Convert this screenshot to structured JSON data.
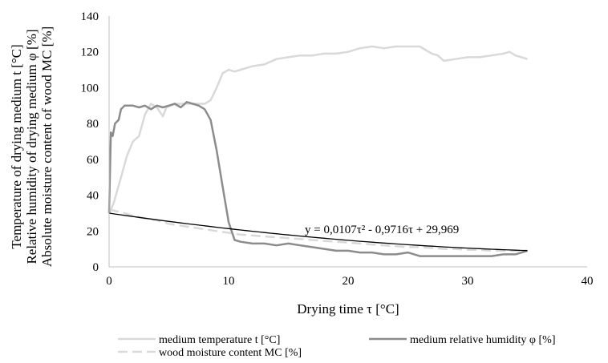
{
  "chart_data": {
    "type": "line",
    "ylabel_lines": [
      "Temperature of drying medium  t [°C]",
      "Relative humidity of drying medium φ [%]",
      "Absolute moisture content of wood MC [%]"
    ],
    "xlabel": "Drying time τ [°C]",
    "xlim": [
      0,
      40
    ],
    "ylim": [
      0,
      140
    ],
    "x_ticks": [
      0,
      10,
      20,
      30,
      40
    ],
    "y_ticks": [
      0,
      20,
      40,
      60,
      80,
      100,
      120,
      140
    ],
    "grid": false,
    "legend_position": "bottom",
    "series": [
      {
        "name": "medium temperature t [°C]",
        "color": "#d9d9d9",
        "style": "solid",
        "points": [
          [
            0.05,
            30
          ],
          [
            0.4,
            36
          ],
          [
            1.0,
            50
          ],
          [
            1.5,
            62
          ],
          [
            2.0,
            70
          ],
          [
            2.5,
            73
          ],
          [
            3.0,
            85
          ],
          [
            3.5,
            91
          ],
          [
            4.0,
            89
          ],
          [
            4.3,
            86
          ],
          [
            4.5,
            84
          ],
          [
            4.8,
            89
          ],
          [
            5.5,
            91
          ],
          [
            6.5,
            91
          ],
          [
            7.5,
            91
          ],
          [
            8.0,
            91
          ],
          [
            8.5,
            93
          ],
          [
            9.0,
            100
          ],
          [
            9.5,
            108
          ],
          [
            10.0,
            110
          ],
          [
            10.5,
            109
          ],
          [
            11.0,
            110
          ],
          [
            12.0,
            112
          ],
          [
            13.0,
            113
          ],
          [
            14.0,
            116
          ],
          [
            15.0,
            117
          ],
          [
            16.0,
            118
          ],
          [
            17.0,
            118
          ],
          [
            18.0,
            119
          ],
          [
            19.0,
            119
          ],
          [
            20.0,
            120
          ],
          [
            21.0,
            122
          ],
          [
            22.0,
            123
          ],
          [
            23.0,
            122
          ],
          [
            24.0,
            123
          ],
          [
            25.0,
            123
          ],
          [
            26.0,
            123
          ],
          [
            26.5,
            121
          ],
          [
            27.0,
            119
          ],
          [
            27.5,
            118
          ],
          [
            28.0,
            115
          ],
          [
            29.0,
            116
          ],
          [
            30.0,
            117
          ],
          [
            31.0,
            117
          ],
          [
            32.0,
            118
          ],
          [
            33.0,
            119
          ],
          [
            33.5,
            120
          ],
          [
            34.0,
            118
          ],
          [
            34.5,
            117
          ],
          [
            35.0,
            116
          ]
        ]
      },
      {
        "name": "medium relative humidity φ [%]",
        "color": "#8c8c8c",
        "style": "solid",
        "points": [
          [
            0.0,
            30
          ],
          [
            0.15,
            75
          ],
          [
            0.3,
            73
          ],
          [
            0.5,
            80
          ],
          [
            0.8,
            82
          ],
          [
            1.0,
            88
          ],
          [
            1.3,
            90
          ],
          [
            2.0,
            90
          ],
          [
            2.5,
            89
          ],
          [
            3.0,
            90
          ],
          [
            3.5,
            88
          ],
          [
            4.0,
            90
          ],
          [
            4.5,
            89
          ],
          [
            5.0,
            90
          ],
          [
            5.5,
            91
          ],
          [
            6.0,
            89
          ],
          [
            6.5,
            92
          ],
          [
            7.0,
            91
          ],
          [
            7.5,
            90
          ],
          [
            8.0,
            88
          ],
          [
            8.5,
            82
          ],
          [
            9.0,
            65
          ],
          [
            9.5,
            45
          ],
          [
            10.0,
            25
          ],
          [
            10.5,
            15
          ],
          [
            11.0,
            14
          ],
          [
            12.0,
            13
          ],
          [
            13.0,
            13
          ],
          [
            14.0,
            12
          ],
          [
            15.0,
            13
          ],
          [
            16.0,
            12
          ],
          [
            17.0,
            11
          ],
          [
            18.0,
            10
          ],
          [
            19.0,
            9
          ],
          [
            20.0,
            9
          ],
          [
            21.0,
            8
          ],
          [
            22.0,
            8
          ],
          [
            23.0,
            7
          ],
          [
            24.0,
            7
          ],
          [
            25.0,
            8
          ],
          [
            26.0,
            6
          ],
          [
            27.0,
            6
          ],
          [
            28.0,
            6
          ],
          [
            29.0,
            6
          ],
          [
            30.0,
            6
          ],
          [
            31.0,
            6
          ],
          [
            32.0,
            6
          ],
          [
            33.0,
            7
          ],
          [
            34.0,
            7
          ],
          [
            35.0,
            9
          ]
        ]
      },
      {
        "name": "wood moisture content MC [%]",
        "color": "#d9d9d9",
        "style": "dashed",
        "points": [
          [
            0,
            32
          ],
          [
            1,
            30.5
          ],
          [
            2,
            28.5
          ],
          [
            3,
            27
          ],
          [
            4,
            26
          ],
          [
            5,
            24
          ],
          [
            6,
            23
          ],
          [
            7,
            22
          ],
          [
            8,
            21
          ],
          [
            9,
            20
          ],
          [
            10,
            19
          ],
          [
            11,
            18
          ],
          [
            12,
            17.5
          ],
          [
            13,
            17
          ],
          [
            14,
            16.5
          ],
          [
            15,
            16
          ],
          [
            16,
            15.5
          ],
          [
            17,
            15
          ],
          [
            18,
            14.5
          ],
          [
            19,
            14
          ],
          [
            20,
            13.5
          ],
          [
            21,
            13
          ],
          [
            22,
            12.5
          ],
          [
            23,
            12
          ],
          [
            24,
            11.5
          ],
          [
            25,
            11
          ],
          [
            26,
            11
          ],
          [
            27,
            10.5
          ],
          [
            28,
            10
          ],
          [
            29,
            10
          ],
          [
            30,
            9.5
          ],
          [
            31,
            9.5
          ],
          [
            32,
            9
          ],
          [
            33,
            9
          ],
          [
            34,
            9
          ],
          [
            35,
            9
          ]
        ]
      }
    ],
    "trendline": {
      "color": "#000000",
      "a": 0.0107,
      "b": -0.9716,
      "c": 29.969,
      "x_range": [
        0,
        35
      ],
      "label": "y = 0,0107τ² - 0,9716τ + 29,969"
    }
  }
}
